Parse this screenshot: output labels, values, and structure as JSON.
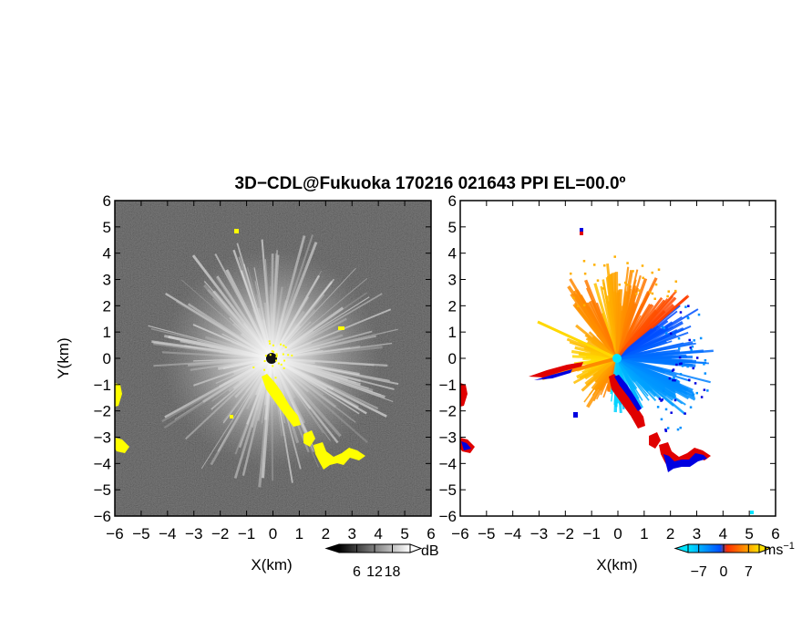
{
  "title": "3D−CDL@Fukuoka 170216 021643 PPI EL=00.0º",
  "chart_data": [
    {
      "type": "heatmap",
      "panel": "left",
      "xlabel": "X(km)",
      "ylabel": "Y(km)",
      "xlim": [
        -6,
        6
      ],
      "ylim": [
        -6,
        6
      ],
      "x_ticks": [
        "−6",
        "−5",
        "−4",
        "−3",
        "−2",
        "−1",
        "0",
        "1",
        "2",
        "3",
        "4",
        "5",
        "6"
      ],
      "y_ticks": [
        "6",
        "5",
        "4",
        "3",
        "2",
        "1",
        "0",
        "−1",
        "−2",
        "−3",
        "−4",
        "−5",
        "−6"
      ],
      "colorbar": {
        "ticks": [
          "6",
          "12",
          "18"
        ],
        "tick_values": [
          6,
          12,
          18
        ],
        "range": [
          0,
          24
        ],
        "unit": "dB",
        "colors": [
          "#000000",
          "#ffffff"
        ]
      },
      "mask_color": "#ffff00",
      "background_color": "#2b2b2b"
    },
    {
      "type": "heatmap",
      "panel": "right",
      "xlabel": "X(km)",
      "ylabel": "",
      "xlim": [
        -6,
        6
      ],
      "ylim": [
        -6,
        6
      ],
      "x_ticks": [
        "−6",
        "−5",
        "−4",
        "−3",
        "−2",
        "−1",
        "0",
        "1",
        "2",
        "3",
        "4",
        "5",
        "6"
      ],
      "y_ticks": [
        "6",
        "5",
        "4",
        "3",
        "2",
        "1",
        "0",
        "−1",
        "−2",
        "−3",
        "−4",
        "−5",
        "−6"
      ],
      "colorbar": {
        "ticks": [
          "−7",
          "0",
          "7"
        ],
        "tick_values": [
          -7,
          0,
          7
        ],
        "range": [
          -10,
          10
        ],
        "unit": "ms",
        "unit_exp": "−1",
        "colors": [
          "#00e5ff",
          "#0050ff",
          "#ff3000",
          "#ffe000"
        ]
      },
      "mask_color": "#ffffff",
      "edge_colors": [
        "#e00000",
        "#0000e0"
      ]
    }
  ]
}
